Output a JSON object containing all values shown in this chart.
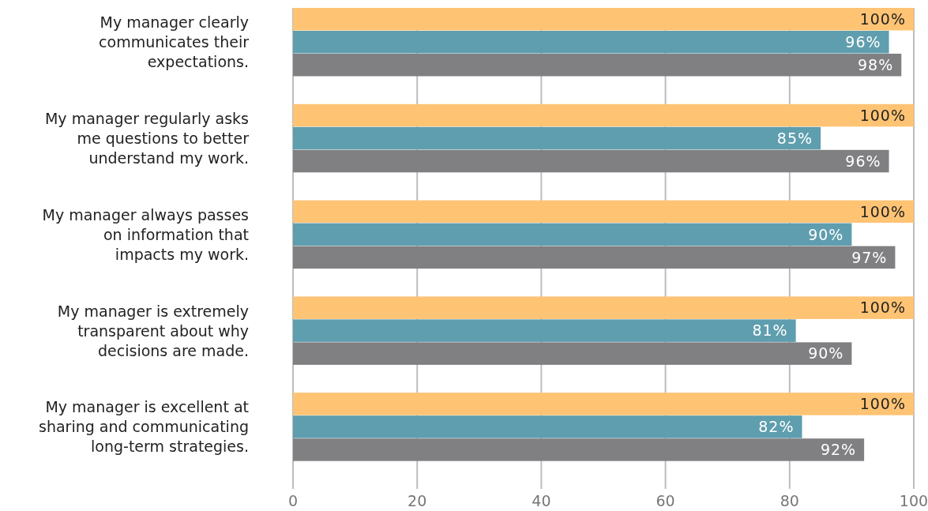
{
  "chart_data": {
    "type": "bar",
    "orientation": "horizontal",
    "categories": [
      "My manager clearly communicates their expectations.",
      "My manager regularly asks me questions to better understand my work.",
      "My manager always passes on information that impacts my work.",
      "My manager is extremely transparent about why decisions are made.",
      "My manager is excellent at sharing and communicating long-term strategies."
    ],
    "series": [
      {
        "color": "#ffc374",
        "values": [
          100,
          100,
          100,
          100,
          100
        ],
        "value_labels": [
          "100%",
          "100%",
          "100%",
          "100%",
          "100%"
        ]
      },
      {
        "color": "#5f9eae",
        "values": [
          96,
          85,
          90,
          81,
          82
        ],
        "value_labels": [
          "96%",
          "85%",
          "90%",
          "81%",
          "82%"
        ]
      },
      {
        "color": "#808083",
        "values": [
          98,
          96,
          97,
          90,
          92
        ],
        "value_labels": [
          "98%",
          "96%",
          "97%",
          "90%",
          "92%"
        ]
      }
    ],
    "xlim": [
      0,
      100
    ],
    "xticks": [
      0,
      20,
      40,
      60,
      80,
      100
    ],
    "grid": "x"
  }
}
